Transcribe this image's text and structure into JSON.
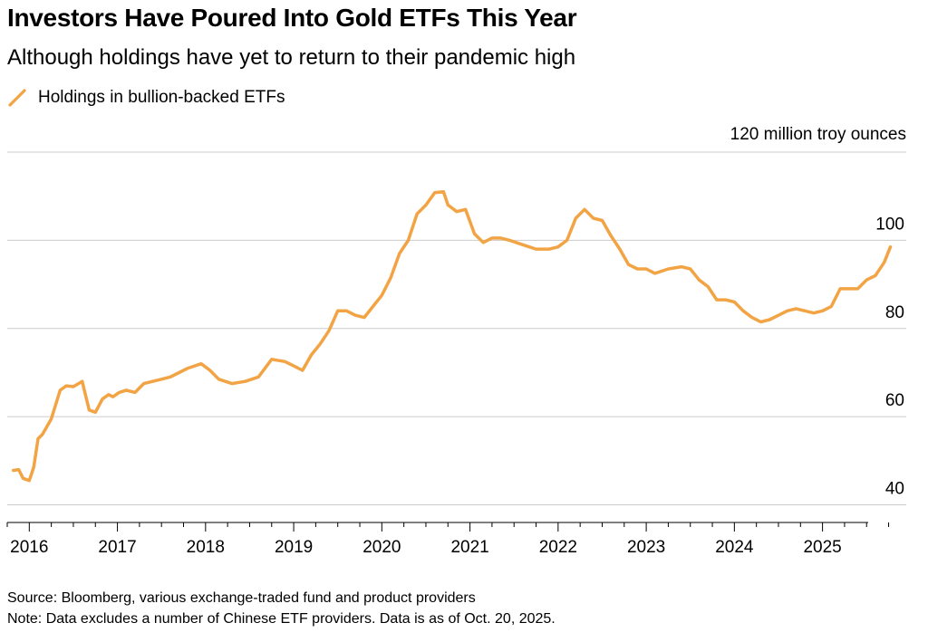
{
  "title": "Investors Have Poured Into Gold ETFs This Year",
  "subtitle": "Although holdings have yet to return to their pandemic high",
  "legend": {
    "label": "Holdings in bullion-backed ETFs",
    "color": "#f2a445"
  },
  "source": "Source: Bloomberg, various exchange-traded fund and product providers",
  "note": "Note: Data excludes a number of Chinese ETF providers. Data is as of Oct. 20, 2025.",
  "chart_data": {
    "type": "line",
    "title": "Investors Have Poured Into Gold ETFs This Year",
    "subtitle": "Although holdings have yet to return to their pandemic high",
    "ylabel": "120 million troy ounces",
    "ylim": [
      36,
      120
    ],
    "xlim": [
      2015.75,
      2025.95
    ],
    "yticks": [
      {
        "value": 120,
        "label": "120 million troy ounces"
      },
      {
        "value": 100,
        "label": "100"
      },
      {
        "value": 80,
        "label": "80"
      },
      {
        "value": 60,
        "label": "60"
      },
      {
        "value": 40,
        "label": "40"
      }
    ],
    "xticks": [
      {
        "value": 2016,
        "label": "2016"
      },
      {
        "value": 2017,
        "label": "2017"
      },
      {
        "value": 2018,
        "label": "2018"
      },
      {
        "value": 2019,
        "label": "2019"
      },
      {
        "value": 2020,
        "label": "2020"
      },
      {
        "value": 2021,
        "label": "2021"
      },
      {
        "value": 2022,
        "label": "2022"
      },
      {
        "value": 2023,
        "label": "2023"
      },
      {
        "value": 2024,
        "label": "2024"
      },
      {
        "value": 2025,
        "label": "2025"
      }
    ],
    "series": [
      {
        "name": "Holdings in bullion-backed ETFs",
        "color": "#f2a445",
        "x": [
          2015.82,
          2015.88,
          2015.93,
          2016.0,
          2016.05,
          2016.1,
          2016.15,
          2016.25,
          2016.35,
          2016.42,
          2016.5,
          2016.6,
          2016.68,
          2016.75,
          2016.83,
          2016.9,
          2016.95,
          2017.02,
          2017.1,
          2017.2,
          2017.3,
          2017.4,
          2017.5,
          2017.6,
          2017.7,
          2017.8,
          2017.95,
          2018.05,
          2018.15,
          2018.3,
          2018.45,
          2018.6,
          2018.75,
          2018.9,
          2019.0,
          2019.1,
          2019.2,
          2019.3,
          2019.4,
          2019.5,
          2019.6,
          2019.7,
          2019.8,
          2019.9,
          2020.0,
          2020.1,
          2020.2,
          2020.3,
          2020.4,
          2020.5,
          2020.6,
          2020.7,
          2020.75,
          2020.85,
          2020.95,
          2021.05,
          2021.15,
          2021.25,
          2021.35,
          2021.45,
          2021.6,
          2021.75,
          2021.9,
          2022.0,
          2022.1,
          2022.2,
          2022.3,
          2022.4,
          2022.5,
          2022.6,
          2022.7,
          2022.8,
          2022.9,
          2023.0,
          2023.1,
          2023.25,
          2023.4,
          2023.5,
          2023.6,
          2023.7,
          2023.8,
          2023.9,
          2024.0,
          2024.1,
          2024.2,
          2024.3,
          2024.4,
          2024.5,
          2024.6,
          2024.7,
          2024.8,
          2024.9,
          2025.0,
          2025.1,
          2025.2,
          2025.3,
          2025.4,
          2025.5,
          2025.6,
          2025.7,
          2025.77
        ],
        "values": [
          47.8,
          48.0,
          46.0,
          45.5,
          48.5,
          55.0,
          56.0,
          59.5,
          66.0,
          67.0,
          66.8,
          68.0,
          61.5,
          61.0,
          64.0,
          65.0,
          64.5,
          65.5,
          66.0,
          65.5,
          67.5,
          68.0,
          68.5,
          69.0,
          70.0,
          71.0,
          72.0,
          70.5,
          68.5,
          67.5,
          68.0,
          69.0,
          73.0,
          72.5,
          71.5,
          70.5,
          74.0,
          76.5,
          79.5,
          84.0,
          84.0,
          83.0,
          82.5,
          85.0,
          87.5,
          91.5,
          97.0,
          100.0,
          106.0,
          108.0,
          110.8,
          111.0,
          108.0,
          106.5,
          107.0,
          101.5,
          99.5,
          100.5,
          100.5,
          100.0,
          99.0,
          98.0,
          98.0,
          98.5,
          100.0,
          105.0,
          107.0,
          105.0,
          104.5,
          101.0,
          98.0,
          94.5,
          93.5,
          93.5,
          92.5,
          93.5,
          94.0,
          93.5,
          91.0,
          89.5,
          86.5,
          86.5,
          86.0,
          84.0,
          82.5,
          81.5,
          82.0,
          83.0,
          84.0,
          84.5,
          84.0,
          83.5,
          84.0,
          85.0,
          89.0,
          89.0,
          89.0,
          91.0,
          92.0,
          95.0,
          98.5
        ]
      }
    ]
  }
}
